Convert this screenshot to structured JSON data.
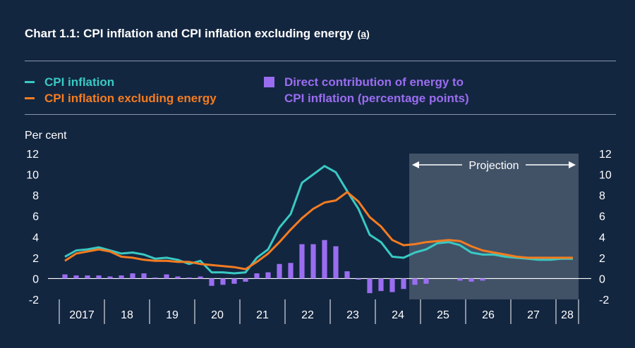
{
  "title": "Chart 1.1: CPI inflation and CPI inflation excluding energy",
  "title_note": "(a)",
  "y_unit": "Per cent",
  "colors": {
    "background": "#132640",
    "cpi": "#39c9c3",
    "cpi_ex_energy": "#f47c20",
    "energy": "#9a6df0",
    "projection_shade": "#4a5a6e",
    "text": "#ffffff"
  },
  "legend": {
    "cpi": "CPI inflation",
    "cpi_ex_energy": "CPI inflation excluding energy",
    "energy_line1": "Direct contribution of energy to",
    "energy_line2": "CPI inflation (percentage points)"
  },
  "chart_data": {
    "type": "line",
    "title": "Chart 1.1: CPI inflation and CPI inflation excluding energy",
    "ylabel": "Per cent",
    "ylim": [
      -2,
      12
    ],
    "yticks": [
      -2,
      0,
      2,
      4,
      6,
      8,
      10,
      12
    ],
    "x_tick_labels": [
      "2017",
      "18",
      "19",
      "20",
      "21",
      "22",
      "23",
      "24",
      "25",
      "26",
      "27",
      "28"
    ],
    "projection": {
      "label": "Projection",
      "start": "2024 Q4",
      "end": "2028 Q2"
    },
    "x": [
      "2017 Q1",
      "2017 Q2",
      "2017 Q3",
      "2017 Q4",
      "2018 Q1",
      "2018 Q2",
      "2018 Q3",
      "2018 Q4",
      "2019 Q1",
      "2019 Q2",
      "2019 Q3",
      "2019 Q4",
      "2020 Q1",
      "2020 Q2",
      "2020 Q3",
      "2020 Q4",
      "2021 Q1",
      "2021 Q2",
      "2021 Q3",
      "2021 Q4",
      "2022 Q1",
      "2022 Q2",
      "2022 Q3",
      "2022 Q4",
      "2023 Q1",
      "2023 Q2",
      "2023 Q3",
      "2023 Q4",
      "2024 Q1",
      "2024 Q2",
      "2024 Q3",
      "2024 Q4",
      "2025 Q1",
      "2025 Q2",
      "2025 Q3",
      "2025 Q4",
      "2026 Q1",
      "2026 Q2",
      "2026 Q3",
      "2026 Q4",
      "2027 Q1",
      "2027 Q2",
      "2027 Q3",
      "2027 Q4",
      "2028 Q1",
      "2028 Q2"
    ],
    "series": [
      {
        "name": "CPI inflation",
        "type": "line",
        "values": [
          2.1,
          2.7,
          2.8,
          3.0,
          2.7,
          2.4,
          2.5,
          2.3,
          1.9,
          2.0,
          1.8,
          1.4,
          1.7,
          0.6,
          0.6,
          0.5,
          0.6,
          2.0,
          2.8,
          4.9,
          6.2,
          9.2,
          10.0,
          10.8,
          10.2,
          8.4,
          6.7,
          4.2,
          3.5,
          2.1,
          2.0,
          2.5,
          2.8,
          3.4,
          3.5,
          3.2,
          2.5,
          2.3,
          2.3,
          2.1,
          2.0,
          1.9,
          1.8,
          1.8,
          1.9,
          1.9
        ]
      },
      {
        "name": "CPI inflation excluding energy",
        "type": "line",
        "values": [
          1.7,
          2.4,
          2.6,
          2.8,
          2.6,
          2.1,
          2.0,
          1.8,
          1.7,
          1.7,
          1.6,
          1.6,
          1.4,
          1.3,
          1.2,
          1.1,
          0.9,
          1.6,
          2.4,
          3.5,
          4.7,
          5.8,
          6.7,
          7.3,
          7.5,
          8.3,
          7.4,
          5.9,
          5.0,
          3.7,
          3.2,
          3.3,
          3.5,
          3.6,
          3.7,
          3.6,
          3.1,
          2.7,
          2.5,
          2.3,
          2.1,
          2.0,
          2.0,
          2.0,
          2.0,
          2.0
        ]
      },
      {
        "name": "Direct contribution of energy to CPI inflation (percentage points)",
        "type": "bar",
        "values": [
          0.4,
          0.3,
          0.3,
          0.3,
          0.2,
          0.3,
          0.5,
          0.5,
          0.1,
          0.4,
          0.2,
          0.1,
          0.2,
          -0.7,
          -0.6,
          -0.5,
          -0.3,
          0.5,
          0.6,
          1.4,
          1.5,
          3.3,
          3.3,
          3.7,
          3.1,
          0.7,
          -0.1,
          -1.4,
          -1.2,
          -1.3,
          -1.0,
          -0.6,
          -0.5,
          0.0,
          0.0,
          -0.2,
          -0.3,
          -0.2,
          0.0,
          0.0,
          0.0,
          0.0,
          0.0,
          0.0,
          0.0,
          0.0
        ]
      }
    ]
  }
}
